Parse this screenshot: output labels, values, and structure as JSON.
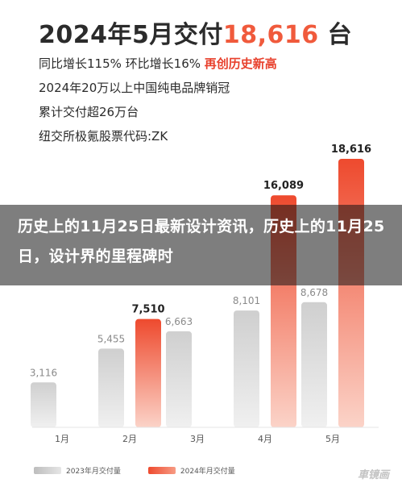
{
  "header": {
    "title_prefix": "2024年5月交付",
    "title_value": "18,616",
    "title_suffix": " 台",
    "line1_text": "同比增长115% 环比增长16% ",
    "line1_highlight": "再创历史新高",
    "line2": "2024年20万以上中国纯电品牌销冠",
    "line3": "累计交付超26万台",
    "line4": "纽交所极氪股票代码:ZK"
  },
  "overlay": {
    "text": "历史上的11月25日最新设计资讯，历史上的11月25日，设计界的里程碑时"
  },
  "watermark": "車镜画",
  "colors": {
    "series_2023": "#d4d4d4",
    "series_2024": "#ef5a3a",
    "accent": "#f05a3c"
  },
  "chart_data": {
    "type": "bar",
    "categories": [
      "1月",
      "2月",
      "3月",
      "4月",
      "5月"
    ],
    "series": [
      {
        "name": "2023年月交付量",
        "values": [
          3116,
          5455,
          6663,
          8101,
          8678
        ]
      },
      {
        "name": "2024年月交付量",
        "values": [
          null,
          7510,
          null,
          16089,
          18616
        ]
      }
    ],
    "data_labels": [
      [
        "3,116",
        "5,455",
        "6,663",
        "8,101",
        "8,678"
      ],
      [
        "",
        "7,510",
        "",
        "16,089",
        "18,616"
      ]
    ],
    "title": "",
    "xlabel": "",
    "ylabel": "",
    "ylim": [
      0,
      18616
    ],
    "grid": false,
    "legend": "bottom-left"
  }
}
